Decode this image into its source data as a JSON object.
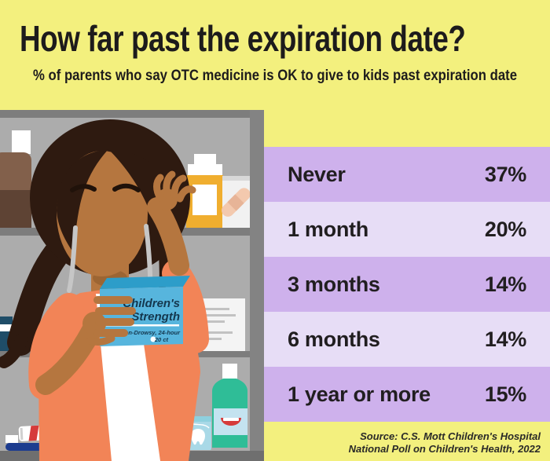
{
  "header": {
    "title": "How far past the expiration date?",
    "subtitle": "% of parents who say OTC medicine is OK to give to kids past expiration date"
  },
  "chart_data": {
    "type": "table",
    "title": "How far past the expiration date?",
    "subtitle": "% of parents who say OTC medicine is OK to give to kids past expiration date",
    "categories": [
      "Never",
      "1 month",
      "3 months",
      "6 months",
      "1 year or more"
    ],
    "values": [
      37,
      20,
      14,
      14,
      15
    ],
    "unit": "%",
    "rows": [
      {
        "label": "Never",
        "value": "37%"
      },
      {
        "label": "1 month",
        "value": "20%"
      },
      {
        "label": "3 months",
        "value": "14%"
      },
      {
        "label": "6 months",
        "value": "14%"
      },
      {
        "label": "1 year or more",
        "value": "15%"
      }
    ],
    "source": "Source: C.S. Mott Children's Hospital National Poll on Children's Health, 2022",
    "legend_position": "none",
    "grid": false
  },
  "source": {
    "line1": "Source: C.S. Mott Children's Hospital",
    "line2": "National Poll on Children's Health, 2022"
  },
  "illustration": {
    "medicine_box": {
      "line1": "Children's",
      "line2": "Strength",
      "line3": "Non-Drowsy, 24-hour",
      "line4": "20 ct"
    }
  },
  "colors": {
    "background_yellow": "#F3F07E",
    "row_dark_purple": "#CEB1EC",
    "row_light_purple": "#E7DDF6",
    "text_black": "#211E20",
    "cabinet_gray": "#ACACAC",
    "frame_gray": "#7D7D7D",
    "skin": "#B5763F",
    "hair": "#2E1A10",
    "cardigan_orange": "#F28457",
    "box_blue": "#57B5DD"
  }
}
